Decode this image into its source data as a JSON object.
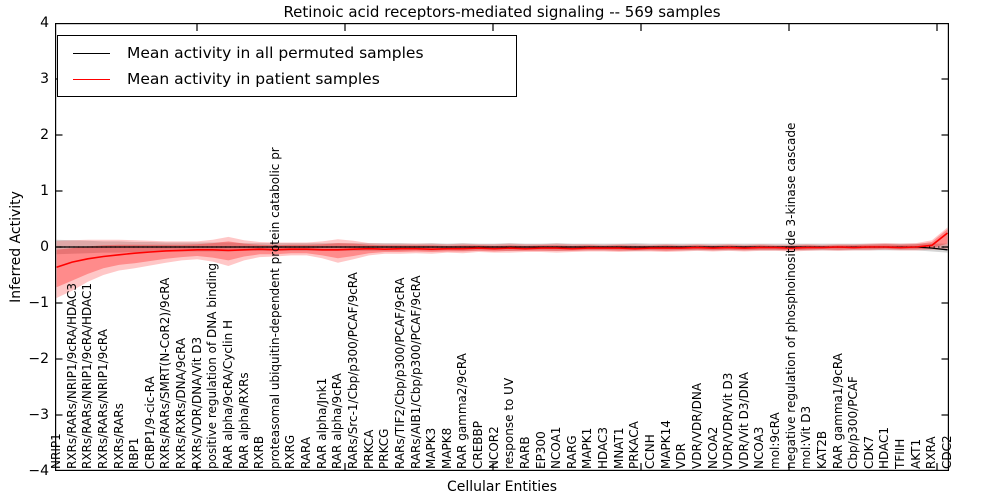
{
  "title": "Retinoic acid receptors-mediated signaling -- 569 samples",
  "legend": {
    "items": [
      {
        "label": "Mean activity in all permuted samples",
        "color": "#000000"
      },
      {
        "label": "Mean activity in patient samples",
        "color": "#ff0000"
      }
    ]
  },
  "axes": {
    "ylabel": "Inferred Activity",
    "xlabel": "Cellular Entities",
    "yticks": [
      "4",
      "3",
      "2",
      "1",
      "0",
      "−1",
      "−2",
      "−3",
      "−4"
    ]
  },
  "colors": {
    "patient_line": "#ff0000",
    "permuted_line": "#000000",
    "patient_band_outer": "rgba(255,0,0,0.22)",
    "patient_band_inner": "rgba(255,0,0,0.30)",
    "permuted_band": "rgba(0,0,0,0.16)",
    "zero_line": "#000000",
    "spine": "#000000"
  },
  "chart_data": {
    "type": "line",
    "title": "Retinoic acid receptors-mediated signaling -- 569 samples",
    "xlabel": "Cellular Entities",
    "ylabel": "Inferred Activity",
    "ylim": [
      -4,
      4
    ],
    "grid": false,
    "legend_position": "upper left",
    "zero_line": "dotted",
    "categories": [
      "NRIP1",
      "RXRs/RARs/NRIP1/9cRA/HDAC3",
      "RXRs/RARs/NRIP1/9cRA/HDAC1",
      "RXRs/RARs/NRIP1/9cRA",
      "RXRs/RARs",
      "RBP1",
      "CRBP1/9-cic-RA",
      "RXRs/RARs/SMRT(N-CoR2)/9cRA",
      "RXRs/RXRs/DNA/9cRA",
      "RXRs/VDR/DNA/Vit D3",
      "positive regulation of DNA binding",
      "RAR alpha/9cRA/Cyclin H",
      "RAR alpha/RXRs",
      "RXRB",
      "proteasomal ubiquitin-dependent protein catabolic pr",
      "RXRG",
      "RARA",
      "RAR alpha/Jnk1",
      "RAR alpha/9cRA",
      "RARs/Src-1/Cbp/p300/PCAF/9cRA",
      "PRKCA",
      "PRKCG",
      "RARs/TIF2/Cbp/p300/PCAF/9cRA",
      "RARs/AIB1/Cbp/p300/PCAF/9cRA",
      "MAPK3",
      "MAPK8",
      "RAR gamma2/9cRA",
      "CREBBP",
      "NCOR2",
      "response to UV",
      "RARB",
      "EP300",
      "NCOA1",
      "RARG",
      "MAPK1",
      "HDAC3",
      "MNAT1",
      "PRKACA",
      "CCNH",
      "MAPK14",
      "VDR",
      "VDR/VDR/DNA",
      "NCOA2",
      "VDR/VDR/Vit D3",
      "VDR/Vit D3/DNA",
      "NCOA3",
      "mol:9cRA",
      "negative regulation of phosphoinositide 3-kinase cascade",
      "mol:Vit D3",
      "KAT2B",
      "RAR gamma1/9cRA",
      "Cbp/p300/PCAF",
      "CDK7",
      "HDAC1",
      "TFIIH",
      "AKT1",
      "RXRA",
      "CDC2"
    ],
    "series": [
      {
        "name": "Mean activity in all permuted samples",
        "color": "#000000",
        "values": [
          0,
          0,
          0,
          0,
          0,
          0,
          0,
          0,
          0,
          0,
          0,
          0,
          0,
          0,
          0,
          0,
          0,
          0,
          0,
          0,
          0,
          0,
          0,
          0,
          0,
          0,
          0,
          0,
          0,
          0,
          0,
          0,
          0,
          0,
          0,
          0,
          0,
          0,
          0,
          0,
          0,
          0,
          0,
          0,
          0,
          0,
          0,
          0,
          0,
          0,
          0,
          0,
          0,
          0,
          0,
          0,
          -0.02,
          -0.05
        ]
      },
      {
        "name": "Mean activity in patient samples",
        "color": "#ff0000",
        "values": [
          -0.36,
          -0.27,
          -0.21,
          -0.17,
          -0.14,
          -0.11,
          -0.09,
          -0.07,
          -0.06,
          -0.05,
          -0.05,
          -0.06,
          -0.05,
          -0.04,
          -0.05,
          -0.04,
          -0.04,
          -0.05,
          -0.05,
          -0.04,
          -0.03,
          -0.04,
          -0.03,
          -0.03,
          -0.04,
          -0.03,
          -0.03,
          -0.02,
          -0.03,
          -0.02,
          -0.03,
          -0.02,
          -0.02,
          -0.03,
          -0.02,
          -0.02,
          -0.02,
          -0.03,
          -0.02,
          -0.02,
          -0.02,
          -0.01,
          -0.02,
          -0.01,
          -0.02,
          -0.01,
          -0.01,
          -0.02,
          -0.01,
          -0.01,
          0.0,
          -0.01,
          0.0,
          0.0,
          -0.01,
          0.0,
          0.03,
          0.25
        ]
      }
    ],
    "bands": [
      {
        "name": "permuted-samples-range",
        "color": "rgba(0,0,0,0.16)",
        "upper": [
          0.13,
          0.12,
          0.11,
          0.1,
          0.1,
          0.09,
          0.09,
          0.08,
          0.08,
          0.08,
          0.08,
          0.08,
          0.07,
          0.07,
          0.07,
          0.07,
          0.07,
          0.07,
          0.07,
          0.07,
          0.07,
          0.07,
          0.07,
          0.06,
          0.07,
          0.06,
          0.07,
          0.06,
          0.06,
          0.07,
          0.06,
          0.06,
          0.07,
          0.06,
          0.06,
          0.06,
          0.06,
          0.07,
          0.06,
          0.06,
          0.06,
          0.06,
          0.06,
          0.06,
          0.06,
          0.06,
          0.06,
          0.06,
          0.06,
          0.06,
          0.06,
          0.06,
          0.06,
          0.06,
          0.06,
          0.06,
          0.06,
          0.06
        ],
        "lower": [
          -0.13,
          -0.12,
          -0.11,
          -0.1,
          -0.1,
          -0.09,
          -0.09,
          -0.08,
          -0.08,
          -0.08,
          -0.08,
          -0.08,
          -0.07,
          -0.07,
          -0.07,
          -0.07,
          -0.07,
          -0.07,
          -0.07,
          -0.07,
          -0.07,
          -0.07,
          -0.07,
          -0.06,
          -0.07,
          -0.06,
          -0.07,
          -0.06,
          -0.06,
          -0.07,
          -0.06,
          -0.06,
          -0.07,
          -0.06,
          -0.06,
          -0.06,
          -0.06,
          -0.07,
          -0.06,
          -0.06,
          -0.06,
          -0.06,
          -0.06,
          -0.06,
          -0.06,
          -0.06,
          -0.06,
          -0.06,
          -0.06,
          -0.06,
          -0.06,
          -0.06,
          -0.06,
          -0.06,
          -0.06,
          -0.06,
          -0.08,
          -0.1
        ]
      },
      {
        "name": "patient-samples-range-outer",
        "color": "rgba(255,0,0,0.22)",
        "upper": [
          0.11,
          0.12,
          0.13,
          0.13,
          0.13,
          0.12,
          0.11,
          0.1,
          0.1,
          0.1,
          0.13,
          0.18,
          0.12,
          0.09,
          0.08,
          0.08,
          0.08,
          0.1,
          0.14,
          0.11,
          0.07,
          0.06,
          0.06,
          0.06,
          0.06,
          0.05,
          0.06,
          0.05,
          0.05,
          0.06,
          0.05,
          0.05,
          0.06,
          0.05,
          0.05,
          0.04,
          0.05,
          0.05,
          0.04,
          0.05,
          0.04,
          0.05,
          0.04,
          0.05,
          0.04,
          0.05,
          0.04,
          0.04,
          0.05,
          0.04,
          0.05,
          0.05,
          0.06,
          0.07,
          0.06,
          0.07,
          0.12,
          0.35
        ],
        "lower": [
          -0.91,
          -0.78,
          -0.62,
          -0.5,
          -0.42,
          -0.38,
          -0.33,
          -0.28,
          -0.24,
          -0.22,
          -0.26,
          -0.34,
          -0.24,
          -0.18,
          -0.17,
          -0.15,
          -0.15,
          -0.2,
          -0.28,
          -0.22,
          -0.15,
          -0.12,
          -0.12,
          -0.11,
          -0.12,
          -0.1,
          -0.11,
          -0.09,
          -0.1,
          -0.1,
          -0.09,
          -0.09,
          -0.1,
          -0.09,
          -0.08,
          -0.08,
          -0.09,
          -0.08,
          -0.08,
          -0.09,
          -0.08,
          -0.07,
          -0.08,
          -0.07,
          -0.08,
          -0.07,
          -0.07,
          -0.08,
          -0.07,
          -0.06,
          -0.07,
          -0.06,
          -0.06,
          -0.05,
          -0.06,
          -0.06,
          -0.05,
          -0.05
        ]
      },
      {
        "name": "patient-samples-range-inner",
        "color": "rgba(255,0,0,0.30)",
        "upper": [
          -0.05,
          -0.02,
          0.01,
          0.03,
          0.04,
          0.04,
          0.04,
          0.04,
          0.04,
          0.05,
          0.07,
          0.1,
          0.06,
          0.04,
          0.03,
          0.04,
          0.04,
          0.05,
          0.07,
          0.06,
          0.04,
          0.03,
          0.03,
          0.03,
          0.03,
          0.02,
          0.03,
          0.03,
          0.02,
          0.03,
          0.02,
          0.03,
          0.03,
          0.02,
          0.03,
          0.02,
          0.03,
          0.02,
          0.02,
          0.03,
          0.02,
          0.03,
          0.02,
          0.03,
          0.02,
          0.03,
          0.02,
          0.02,
          0.03,
          0.02,
          0.03,
          0.03,
          0.04,
          0.05,
          0.04,
          0.05,
          0.09,
          0.32
        ],
        "lower": [
          -0.72,
          -0.6,
          -0.48,
          -0.38,
          -0.32,
          -0.29,
          -0.25,
          -0.21,
          -0.18,
          -0.16,
          -0.19,
          -0.24,
          -0.17,
          -0.13,
          -0.13,
          -0.11,
          -0.11,
          -0.15,
          -0.2,
          -0.16,
          -0.11,
          -0.09,
          -0.09,
          -0.08,
          -0.09,
          -0.08,
          -0.08,
          -0.07,
          -0.08,
          -0.07,
          -0.07,
          -0.07,
          -0.07,
          -0.07,
          -0.06,
          -0.06,
          -0.07,
          -0.06,
          -0.06,
          -0.07,
          -0.06,
          -0.05,
          -0.06,
          -0.05,
          -0.06,
          -0.05,
          -0.05,
          -0.06,
          -0.05,
          -0.04,
          -0.05,
          -0.04,
          -0.04,
          -0.03,
          -0.04,
          -0.04,
          -0.02,
          0.06
        ]
      }
    ]
  }
}
